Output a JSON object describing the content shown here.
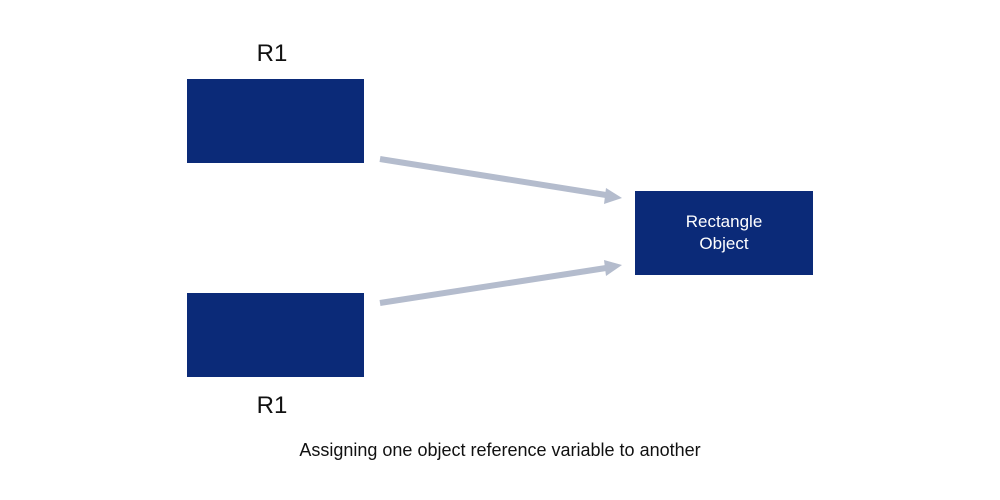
{
  "diagram": {
    "colors": {
      "box_fill": "#0b2a78",
      "arrow": "#b4bccd",
      "object_text": "#ffffff"
    },
    "references": [
      {
        "label": "R1"
      },
      {
        "label": "R1"
      }
    ],
    "object": {
      "label": "Rectangle\nObject"
    },
    "caption": "Assigning one object reference variable to another"
  }
}
